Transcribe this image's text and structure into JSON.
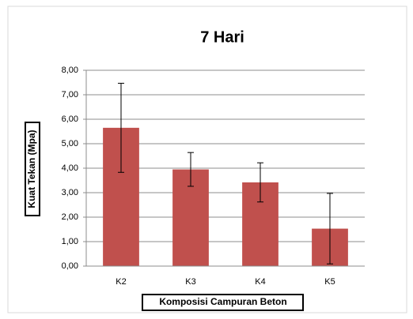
{
  "chart_data": {
    "type": "bar",
    "title": "7 Hari",
    "x_label": "Komposisi Campuran Beton",
    "y_label": "Kuat Tekan (Mpa)",
    "categories": [
      "K2",
      "K3",
      "K4",
      "K5"
    ],
    "values": [
      5.65,
      3.95,
      3.42,
      1.53
    ],
    "errors": [
      1.82,
      0.69,
      0.8,
      1.44
    ],
    "color": "#c0504d",
    "ylim": [
      0,
      8
    ],
    "yticks": [
      {
        "value": 0,
        "label": "0,00"
      },
      {
        "value": 1,
        "label": "1,00"
      },
      {
        "value": 2,
        "label": "2,00"
      },
      {
        "value": 3,
        "label": "3,00"
      },
      {
        "value": 4,
        "label": "4,00"
      },
      {
        "value": 5,
        "label": "5,00"
      },
      {
        "value": 6,
        "label": "6,00"
      },
      {
        "value": 7,
        "label": "7,00"
      },
      {
        "value": 8,
        "label": "8,00"
      }
    ],
    "grid": true
  }
}
